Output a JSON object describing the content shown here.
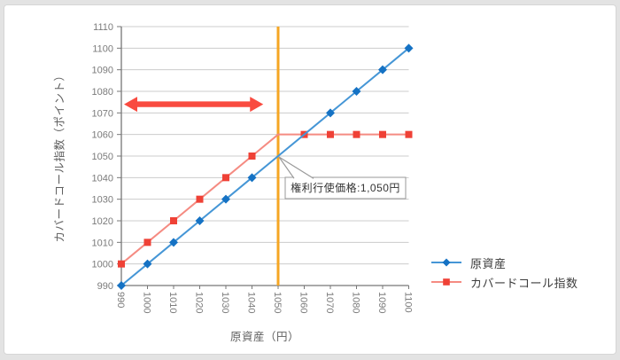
{
  "window": {
    "background": "#e3e3e3",
    "card_background": "#ffffff",
    "card_border": "#d6d6d6"
  },
  "chart_data": {
    "type": "line",
    "title": "",
    "xlabel": "原資産（円）",
    "ylabel": "カバードコール指数（ポイント）",
    "x": [
      990,
      1000,
      1010,
      1020,
      1030,
      1040,
      1050,
      1060,
      1070,
      1080,
      1090,
      1100
    ],
    "series": [
      {
        "name": "原資産",
        "values": [
          990,
          1000,
          1010,
          1020,
          1030,
          1040,
          1050,
          1060,
          1070,
          1080,
          1090,
          1100
        ],
        "marker": "diamond",
        "marker_color": "#1572c4",
        "line_color": "#4596d6",
        "marker_skip_x": [
          1050,
          1060
        ]
      },
      {
        "name": "カバードコール指数",
        "values": [
          1000,
          1010,
          1020,
          1030,
          1040,
          1050,
          1060,
          1060,
          1060,
          1060,
          1060,
          1060
        ],
        "marker": "square",
        "marker_color": "#ef4136",
        "line_color": "#f58b82",
        "marker_skip_x": [
          1050
        ]
      }
    ],
    "xlim": [
      990,
      1100
    ],
    "ylim": [
      990,
      1110
    ],
    "tick_step": 10,
    "grid": "horizontal",
    "grid_color": "#cccccc",
    "axis_color": "#777777",
    "tick_label_color": "#7b7b7b",
    "legend_position": "bottom-right",
    "strike_line": {
      "x": 1050,
      "color": "#f5a623"
    },
    "annotation": {
      "text": "権利行使価格:1,050円",
      "target": {
        "x": 1050,
        "y": 1050
      }
    },
    "range_arrow": {
      "x_start": 990,
      "x_end": 1045,
      "y": 1074,
      "color": "#f94b40"
    }
  }
}
